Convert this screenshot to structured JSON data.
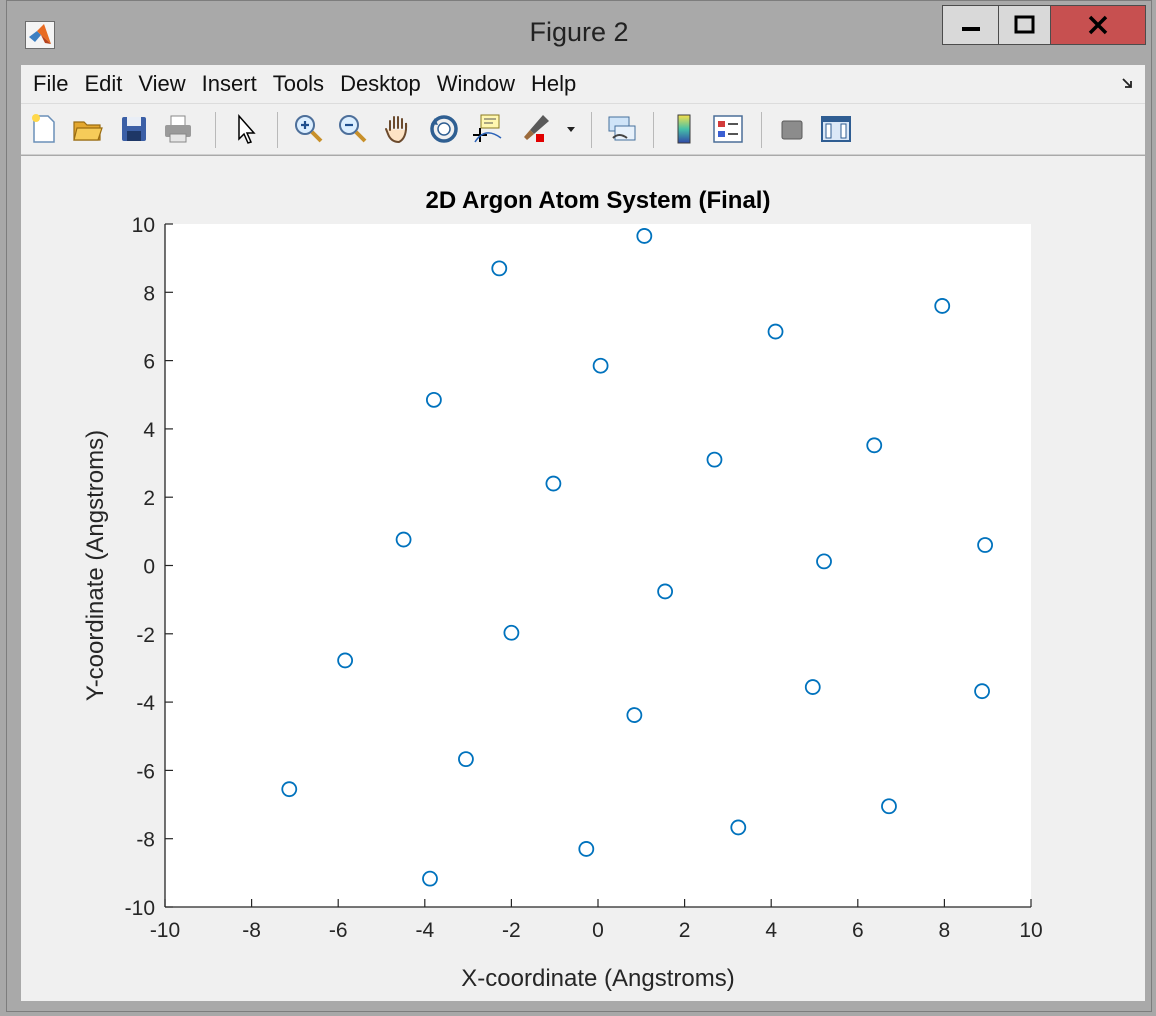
{
  "window": {
    "title": "Figure 2",
    "icon": "matlab-logo-icon"
  },
  "menu": [
    "File",
    "Edit",
    "View",
    "Insert",
    "Tools",
    "Desktop",
    "Window",
    "Help"
  ],
  "toolbar": {
    "tools": [
      "new-figure-icon",
      "open-file-icon",
      "save-icon",
      "print-icon",
      "pointer-icon",
      "zoom-in-icon",
      "zoom-out-icon",
      "pan-icon",
      "rotate-3d-icon",
      "data-cursor-icon",
      "brush-icon",
      "link-plot-icon",
      "colorbar-icon",
      "legend-icon",
      "hide-plot-tools-icon",
      "show-plot-tools-icon"
    ]
  },
  "colors": {
    "marker": "#0072bd",
    "plot_background": "#ffffff",
    "figure_background": "#f0f0f0",
    "close_button": "#c75050"
  },
  "chart_data": {
    "type": "scatter",
    "title": "2D Argon Atom System (Final)",
    "xlabel": "X-coordinate (Angstroms)",
    "ylabel": "Y-coordinate (Angstroms)",
    "xlim": [
      -10,
      10
    ],
    "ylim": [
      -10,
      10
    ],
    "xticks": [
      -10,
      -8,
      -6,
      -4,
      -2,
      0,
      2,
      4,
      6,
      8,
      10
    ],
    "yticks": [
      -10,
      -8,
      -6,
      -4,
      -2,
      0,
      2,
      4,
      6,
      8,
      10
    ],
    "grid": false,
    "marker": "circle",
    "points": [
      {
        "x": 1.07,
        "y": 9.65
      },
      {
        "x": -2.28,
        "y": 8.7
      },
      {
        "x": 7.95,
        "y": 7.6
      },
      {
        "x": 4.1,
        "y": 6.85
      },
      {
        "x": 0.06,
        "y": 5.85
      },
      {
        "x": -3.79,
        "y": 4.85
      },
      {
        "x": 6.38,
        "y": 3.52
      },
      {
        "x": 2.69,
        "y": 3.1
      },
      {
        "x": -1.03,
        "y": 2.4
      },
      {
        "x": -4.49,
        "y": 0.76
      },
      {
        "x": 8.94,
        "y": 0.6
      },
      {
        "x": 5.22,
        "y": 0.12
      },
      {
        "x": 1.55,
        "y": -0.76
      },
      {
        "x": -2.0,
        "y": -1.97
      },
      {
        "x": -5.84,
        "y": -2.78
      },
      {
        "x": 4.96,
        "y": -3.56
      },
      {
        "x": 8.87,
        "y": -3.68
      },
      {
        "x": 0.84,
        "y": -4.38
      },
      {
        "x": -3.05,
        "y": -5.67
      },
      {
        "x": -7.13,
        "y": -6.55
      },
      {
        "x": 6.72,
        "y": -7.05
      },
      {
        "x": 3.24,
        "y": -7.67
      },
      {
        "x": -0.27,
        "y": -8.3
      },
      {
        "x": -3.88,
        "y": -9.17
      }
    ]
  }
}
